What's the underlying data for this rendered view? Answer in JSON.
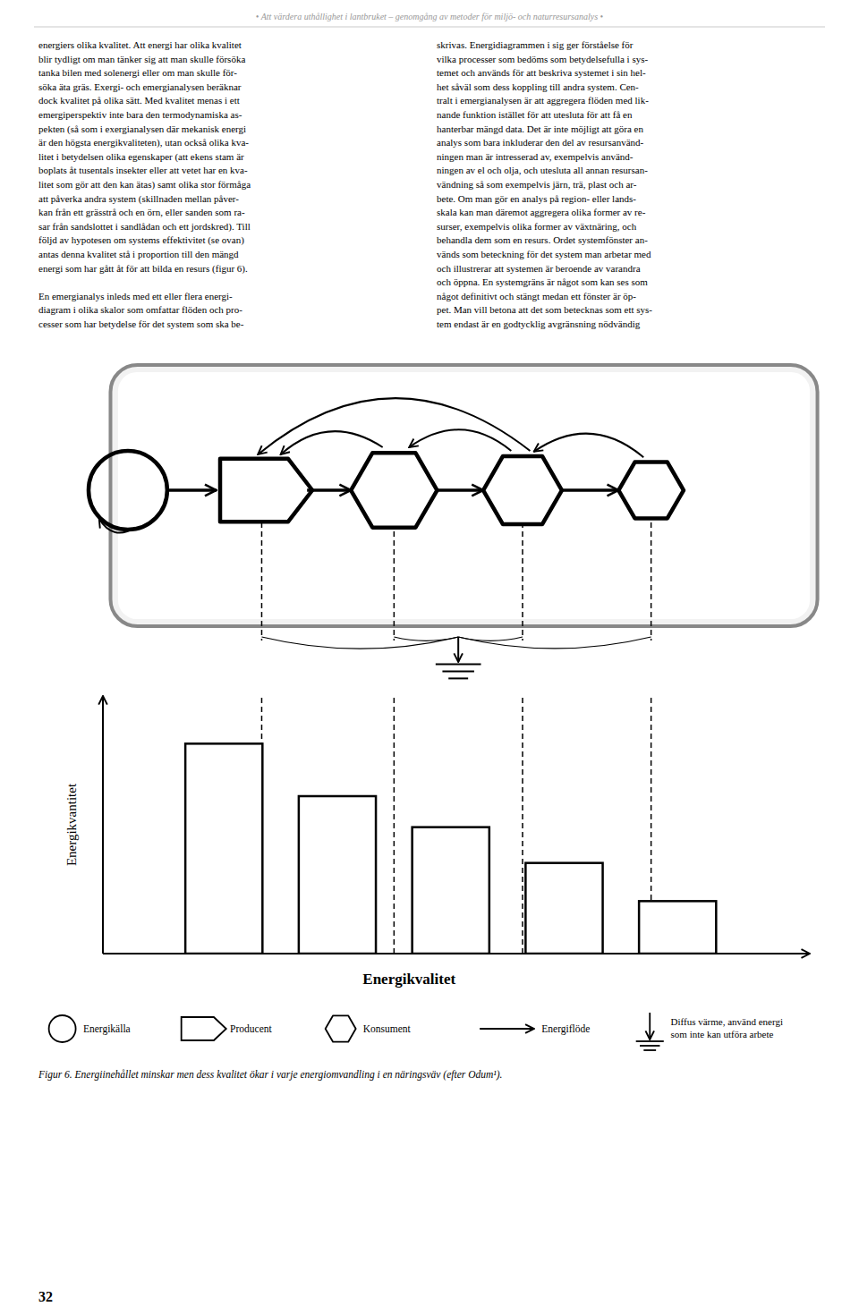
{
  "header": "• Att värdera uthållighet i lantbruket – genomgång av metoder för miljö- och naturresursanalys •",
  "body_left": "energiers olika kvalitet. Att energi har olika kvalitet\nblir tydligt om man tänker sig att man skulle försöka\ntanka bilen med solenergi eller om man skulle för-\nsöka äta gräs. Exergi- och emergianalysen beräknar\ndock kvalitet på olika sätt. Med kvalitet menas i ett\nemergiperspektiv inte bara den termodynamiska as-\npekten (så som i exergianalysen där mekanisk energi\när den högsta energikvaliteten), utan också olika kva-\nlitet i betydelsen olika egenskaper (att ekens stam är\nboplats åt tusentals insekter eller att vetet har en kva-\nlitet som gör att den kan ätas) samt olika stor förmåga\natt påverka andra system (skillnaden mellan påver-\nkan från ett grässtrå och en örn, eller sanden som ra-\nsar från sandslottet i sandlådan och ett jordskred). Till\nföljd av hypotesen om systems effektivitet (se ovan)\nantas denna kvalitet stå i proportion till den mängd\nenergi som har gått åt för att bilda en resurs (figur 6).\n\nEn emergianalys inleds med ett eller flera energi-\ndiagram i olika skalor som omfattar flöden och pro-\ncesser som har betydelse för det system som ska be-",
  "body_right": "skrivas. Energidiagrammen i sig ger förståelse för\nvilka processer som bedöms som betydelsefulla i sys-\ntemet och används för att beskriva systemet i sin hel-\nhet såväl som dess koppling till andra system. Cen-\ntralt i emergianalysen är att aggregera flöden med lik-\nnande funktion istället för att utesluta för att få en\nhanterbar mängd data. Det är inte möjligt att göra en\nanalys som bara inkluderar den del av resursanvänd-\nningen man är intresserad av, exempelvis använd-\nningen av el och olja, och utesluta all annan resursan-\nvändning så som exempelvis järn, trä, plast och ar-\nbete. Om man gör en analys på region- eller lands-\nskala kan man däremot aggregera olika former av re-\nsurser, exempelvis olika former av växtnäring, och\nbehandla dem som en resurs. Ordet systemfönster an-\nvänds som beteckning för det system man arbetar med\noch illustrerar att systemen är beroende av varandra\noch öppna. En systemgräns är något som kan ses som\nnågot definitivt och stängt medan ett fönster är öp-\npet. Man vill betona att det som betecknas som ett sys-\ntem endast är en godtycklig avgränsning nödvändig",
  "diagram_legend": [
    "Energikälla",
    "Producent",
    "Konsument",
    "Energiflöde",
    [
      "Diffus värme, använd energi",
      "som inte kan utföra arbete"
    ]
  ],
  "figure_caption": "Figur 6. Energiinehållet minskar men dess kvalitet ökar i varje energiomvandling i en näringsväv (efter Odum¹).",
  "page_number": "32",
  "chart_data": {
    "type": "bar",
    "categories": [
      null,
      null,
      null,
      null,
      null
    ],
    "values": [
      0.88,
      0.66,
      0.53,
      0.38,
      0.22
    ],
    "xlabel": "Energikvalitet",
    "ylabel": "Energikvantitet",
    "color": "#ffffff",
    "ylim": [
      0,
      1.08
    ],
    "grid": false,
    "tick_labels": false
  }
}
